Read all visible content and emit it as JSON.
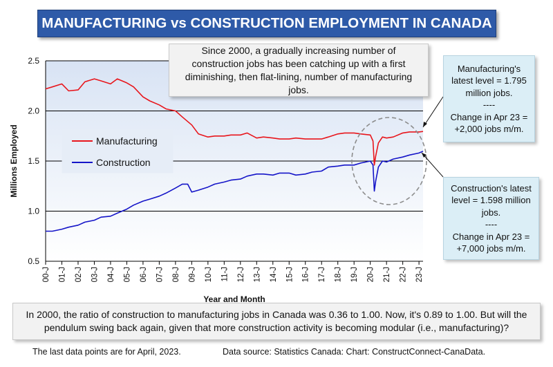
{
  "title": "MANUFACTURING vs CONSTRUCTION EMPLOYMENT IN CANADA",
  "annotation_top": "Since 2000, a gradually increasing number of construction jobs has been catching up with a first diminishing, then flat-lining, number of manufacturing jobs.",
  "manufacturing_box": [
    "Manufacturing's",
    "latest level = 1.795",
    "million jobs.",
    "----",
    "Change in Apr 23 =",
    "+2,000 jobs m/m."
  ],
  "construction_box": [
    "Construction's latest",
    "level = 1.598 million",
    "jobs.",
    "----",
    "Change in Apr 23 =",
    "+7,000 jobs m/m."
  ],
  "bottom_note": "In 2000, the ratio of construction to manufacturing jobs in Canada was 0.36 to 1.00. Now, it's 0.89 to 1.00. But will the pendulum swing back again, given that more construction activity is becoming modular (i.e., manufacturing)?",
  "footer_left": "The last data points are for April, 2023.",
  "footer_right": "Data source: Statistics Canada: Chart: ConstructConnect-CanaData.",
  "colors": {
    "manufacturing": "#e8151b",
    "construction": "#1414c8",
    "title_bg": "#2e5aa8",
    "plot_bg": "#dfe8f6",
    "info_bg": "#dbeef6"
  },
  "chart_data": {
    "type": "line",
    "title": "MANUFACTURING vs CONSTRUCTION EMPLOYMENT IN CANADA",
    "xlabel": "Year and Month",
    "ylabel": "Millions Employed",
    "ylim": [
      0.5,
      2.5
    ],
    "yticks": [
      "0.5",
      "1.0",
      "1.5",
      "2.0",
      "2.5"
    ],
    "xticks": [
      "00-J",
      "01-J",
      "02-J",
      "03-J",
      "04-J",
      "05-J",
      "06-J",
      "07-J",
      "08-J",
      "09-J",
      "10-J",
      "11-J",
      "12-J",
      "13-J",
      "14-J",
      "15-J",
      "16-J",
      "17-J",
      "18-J",
      "19-J",
      "20-J",
      "21-J",
      "22-J",
      "23-J"
    ],
    "grid": true,
    "legend": "left-middle",
    "x_start": "2000-01",
    "x_end": "2023-04",
    "series": [
      {
        "name": "Manufacturing",
        "points": [
          [
            "2000-01",
            2.22
          ],
          [
            "2000-06",
            2.24
          ],
          [
            "2001-01",
            2.27
          ],
          [
            "2001-06",
            2.2
          ],
          [
            "2002-01",
            2.21
          ],
          [
            "2002-06",
            2.29
          ],
          [
            "2003-01",
            2.32
          ],
          [
            "2003-06",
            2.3
          ],
          [
            "2004-01",
            2.27
          ],
          [
            "2004-06",
            2.32
          ],
          [
            "2005-01",
            2.28
          ],
          [
            "2005-06",
            2.24
          ],
          [
            "2006-01",
            2.14
          ],
          [
            "2006-06",
            2.1
          ],
          [
            "2007-01",
            2.06
          ],
          [
            "2007-06",
            2.02
          ],
          [
            "2008-01",
            2.0
          ],
          [
            "2008-06",
            1.94
          ],
          [
            "2009-01",
            1.86
          ],
          [
            "2009-06",
            1.77
          ],
          [
            "2010-01",
            1.74
          ],
          [
            "2010-06",
            1.75
          ],
          [
            "2011-01",
            1.75
          ],
          [
            "2011-06",
            1.76
          ],
          [
            "2012-01",
            1.76
          ],
          [
            "2012-06",
            1.78
          ],
          [
            "2013-01",
            1.73
          ],
          [
            "2013-06",
            1.74
          ],
          [
            "2014-01",
            1.73
          ],
          [
            "2014-06",
            1.72
          ],
          [
            "2015-01",
            1.72
          ],
          [
            "2015-06",
            1.73
          ],
          [
            "2016-01",
            1.72
          ],
          [
            "2016-06",
            1.72
          ],
          [
            "2017-01",
            1.72
          ],
          [
            "2017-06",
            1.74
          ],
          [
            "2018-01",
            1.77
          ],
          [
            "2018-06",
            1.78
          ],
          [
            "2019-01",
            1.78
          ],
          [
            "2019-06",
            1.77
          ],
          [
            "2020-01",
            1.76
          ],
          [
            "2020-03",
            1.7
          ],
          [
            "2020-04",
            1.46
          ],
          [
            "2020-05",
            1.55
          ],
          [
            "2020-07",
            1.68
          ],
          [
            "2020-10",
            1.74
          ],
          [
            "2021-01",
            1.73
          ],
          [
            "2021-06",
            1.74
          ],
          [
            "2022-01",
            1.78
          ],
          [
            "2022-06",
            1.79
          ],
          [
            "2023-01",
            1.79
          ],
          [
            "2023-04",
            1.795
          ]
        ]
      },
      {
        "name": "Construction",
        "points": [
          [
            "2000-01",
            0.8
          ],
          [
            "2000-06",
            0.8
          ],
          [
            "2001-01",
            0.82
          ],
          [
            "2001-06",
            0.84
          ],
          [
            "2002-01",
            0.86
          ],
          [
            "2002-06",
            0.89
          ],
          [
            "2003-01",
            0.91
          ],
          [
            "2003-06",
            0.94
          ],
          [
            "2004-01",
            0.95
          ],
          [
            "2004-06",
            0.98
          ],
          [
            "2005-01",
            1.02
          ],
          [
            "2005-06",
            1.06
          ],
          [
            "2006-01",
            1.1
          ],
          [
            "2006-06",
            1.12
          ],
          [
            "2007-01",
            1.15
          ],
          [
            "2007-06",
            1.18
          ],
          [
            "2008-01",
            1.23
          ],
          [
            "2008-06",
            1.27
          ],
          [
            "2008-10",
            1.27
          ],
          [
            "2009-01",
            1.19
          ],
          [
            "2009-06",
            1.21
          ],
          [
            "2010-01",
            1.24
          ],
          [
            "2010-06",
            1.27
          ],
          [
            "2011-01",
            1.29
          ],
          [
            "2011-06",
            1.31
          ],
          [
            "2012-01",
            1.32
          ],
          [
            "2012-06",
            1.35
          ],
          [
            "2013-01",
            1.37
          ],
          [
            "2013-06",
            1.37
          ],
          [
            "2014-01",
            1.36
          ],
          [
            "2014-06",
            1.38
          ],
          [
            "2015-01",
            1.38
          ],
          [
            "2015-06",
            1.36
          ],
          [
            "2016-01",
            1.37
          ],
          [
            "2016-06",
            1.39
          ],
          [
            "2017-01",
            1.4
          ],
          [
            "2017-06",
            1.44
          ],
          [
            "2018-01",
            1.45
          ],
          [
            "2018-06",
            1.46
          ],
          [
            "2019-01",
            1.46
          ],
          [
            "2019-06",
            1.48
          ],
          [
            "2020-01",
            1.5
          ],
          [
            "2020-03",
            1.46
          ],
          [
            "2020-04",
            1.2
          ],
          [
            "2020-05",
            1.3
          ],
          [
            "2020-07",
            1.44
          ],
          [
            "2020-10",
            1.5
          ],
          [
            "2021-01",
            1.49
          ],
          [
            "2021-06",
            1.52
          ],
          [
            "2022-01",
            1.54
          ],
          [
            "2022-06",
            1.56
          ],
          [
            "2023-01",
            1.58
          ],
          [
            "2023-04",
            1.598
          ]
        ]
      }
    ]
  }
}
